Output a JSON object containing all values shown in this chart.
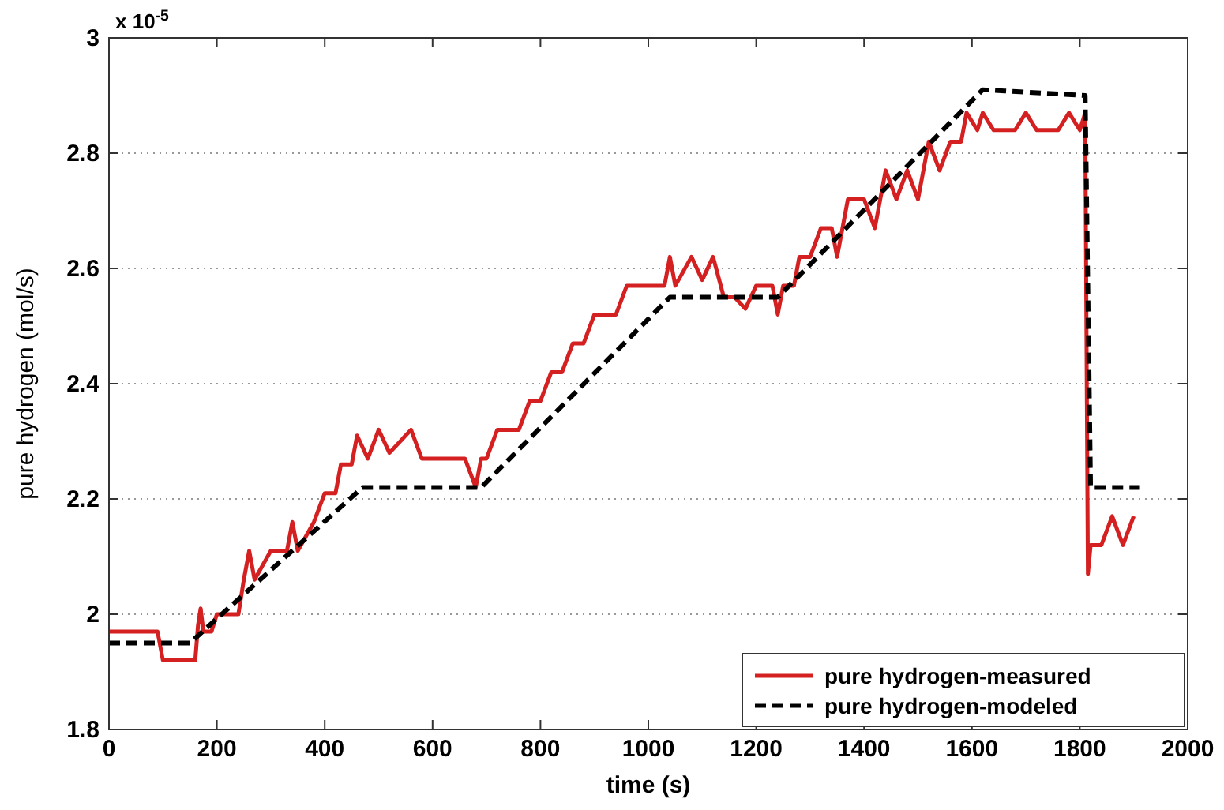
{
  "chart_data": {
    "type": "line",
    "xlabel": "time (s)",
    "ylabel": "pure hydrogen (mol/s)",
    "annotations": [
      "x 10$^{-5}$"
    ],
    "xlim": [
      0,
      2000
    ],
    "xticks": [
      0,
      200,
      400,
      600,
      800,
      1000,
      1200,
      1400,
      1600,
      1800,
      2000
    ],
    "ylim": [
      1.8,
      3
    ],
    "yticks": [
      1.8,
      2,
      2.2,
      2.4,
      2.6,
      2.8,
      3
    ],
    "grid": "y",
    "legend": "bottom right",
    "series": [
      {
        "name": "pure hydrogen-measured",
        "color": "#d42020",
        "line_style": "solid",
        "x": [
          0,
          90,
          100,
          160,
          165,
          170,
          175,
          190,
          200,
          240,
          250,
          260,
          270,
          300,
          330,
          340,
          350,
          380,
          400,
          420,
          430,
          450,
          460,
          480,
          500,
          520,
          560,
          580,
          660,
          680,
          690,
          700,
          720,
          760,
          780,
          800,
          820,
          840,
          860,
          880,
          900,
          940,
          960,
          1000,
          1030,
          1040,
          1050,
          1080,
          1100,
          1120,
          1140,
          1160,
          1180,
          1200,
          1230,
          1240,
          1250,
          1270,
          1280,
          1300,
          1320,
          1340,
          1350,
          1370,
          1400,
          1420,
          1440,
          1460,
          1480,
          1500,
          1520,
          1540,
          1560,
          1580,
          1590,
          1610,
          1620,
          1640,
          1680,
          1700,
          1720,
          1760,
          1780,
          1800,
          1810,
          1815,
          1820,
          1840,
          1860,
          1880,
          1900
        ],
        "values": [
          1.97,
          1.97,
          1.92,
          1.92,
          1.98,
          2.01,
          1.97,
          1.97,
          2.0,
          2.0,
          2.06,
          2.11,
          2.06,
          2.11,
          2.11,
          2.16,
          2.11,
          2.16,
          2.21,
          2.21,
          2.26,
          2.26,
          2.31,
          2.27,
          2.32,
          2.28,
          2.32,
          2.27,
          2.27,
          2.22,
          2.27,
          2.27,
          2.32,
          2.32,
          2.37,
          2.37,
          2.42,
          2.42,
          2.47,
          2.47,
          2.52,
          2.52,
          2.57,
          2.57,
          2.57,
          2.62,
          2.57,
          2.62,
          2.58,
          2.62,
          2.55,
          2.55,
          2.53,
          2.57,
          2.57,
          2.52,
          2.57,
          2.57,
          2.62,
          2.62,
          2.67,
          2.67,
          2.62,
          2.72,
          2.72,
          2.67,
          2.77,
          2.72,
          2.77,
          2.72,
          2.82,
          2.77,
          2.82,
          2.82,
          2.87,
          2.84,
          2.87,
          2.84,
          2.84,
          2.87,
          2.84,
          2.84,
          2.87,
          2.84,
          2.87,
          2.07,
          2.12,
          2.12,
          2.17,
          2.12,
          2.17
        ]
      },
      {
        "name": "pure hydrogen-modeled",
        "color": "#000000",
        "line_style": "dashed",
        "x": [
          0,
          150,
          470,
          690,
          1040,
          1240,
          1620,
          1810,
          1820,
          1910
        ],
        "values": [
          1.95,
          1.95,
          2.22,
          2.22,
          2.55,
          2.55,
          2.91,
          2.9,
          2.22,
          2.22
        ]
      }
    ]
  }
}
